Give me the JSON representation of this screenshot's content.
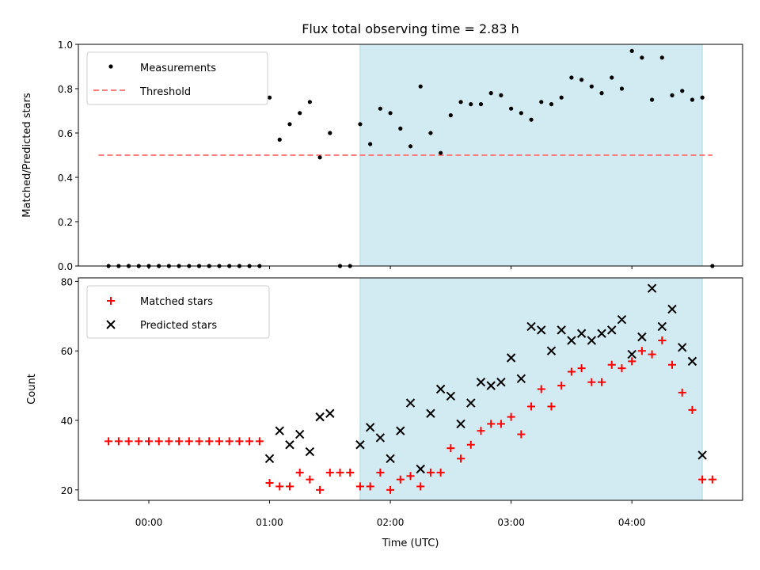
{
  "chart_data": [
    {
      "type": "scatter",
      "title": "Flux total observing time = 2.83 h",
      "ylabel": "Matched/Predicted stars",
      "xlabel": "",
      "xlim": [
        "-00:35",
        "04:55"
      ],
      "ylim": [
        0,
        1.0
      ],
      "yticks": [
        "0.0",
        "0.2",
        "0.4",
        "0.6",
        "0.8",
        "1.0"
      ],
      "shaded_span": [
        "01:45",
        "04:35"
      ],
      "shade_color": "#add8e6",
      "legend_position": "top-left",
      "threshold": {
        "name": "Threshold",
        "y": 0.5,
        "x_range": [
          "-00:25",
          "04:40"
        ],
        "color": "#ff7f7f",
        "style": "dashed"
      },
      "series": [
        {
          "name": "Measurements",
          "color": "#000000",
          "marker": "dot",
          "x": [
            "-00:20",
            "-00:15",
            "-00:10",
            "-00:05",
            "00:00",
            "00:05",
            "00:10",
            "00:15",
            "00:20",
            "00:25",
            "00:30",
            "00:35",
            "00:40",
            "00:45",
            "00:50",
            "00:55",
            "01:00",
            "01:05",
            "01:10",
            "01:15",
            "01:20",
            "01:25",
            "01:30",
            "01:35",
            "01:40",
            "01:45",
            "01:50",
            "01:55",
            "02:00",
            "02:05",
            "02:10",
            "02:15",
            "02:20",
            "02:25",
            "02:30",
            "02:35",
            "02:40",
            "02:45",
            "02:50",
            "02:55",
            "03:00",
            "03:05",
            "03:10",
            "03:15",
            "03:20",
            "03:25",
            "03:30",
            "03:35",
            "03:40",
            "03:45",
            "03:50",
            "03:55",
            "04:00",
            "04:05",
            "04:10",
            "04:15",
            "04:20",
            "04:25",
            "04:30",
            "04:35",
            "04:40"
          ],
          "y": [
            0,
            0,
            0,
            0,
            0,
            0,
            0,
            0,
            0,
            0,
            0,
            0,
            0,
            0,
            0,
            0,
            0.76,
            0.57,
            0.64,
            0.69,
            0.74,
            0.49,
            0.6,
            0,
            0,
            0.64,
            0.55,
            0.71,
            0.69,
            0.62,
            0.54,
            0.81,
            0.6,
            0.51,
            0.68,
            0.74,
            0.73,
            0.73,
            0.78,
            0.77,
            0.71,
            0.69,
            0.66,
            0.74,
            0.73,
            0.76,
            0.85,
            0.84,
            0.81,
            0.78,
            0.85,
            0.8,
            0.97,
            0.94,
            0.75,
            0.94,
            0.77,
            0.79,
            0.75,
            0.76,
            0
          ]
        }
      ]
    },
    {
      "type": "scatter",
      "title": "",
      "ylabel": "Count",
      "xlabel": "Time (UTC)",
      "xlim": [
        "-00:35",
        "04:55"
      ],
      "ylim": [
        17,
        81
      ],
      "xticks": [
        "00:00",
        "01:00",
        "02:00",
        "03:00",
        "04:00"
      ],
      "yticks": [
        "20",
        "40",
        "60",
        "80"
      ],
      "shaded_span": [
        "01:45",
        "04:35"
      ],
      "shade_color": "#add8e6",
      "legend_position": "top-left",
      "series": [
        {
          "name": "Matched stars",
          "color": "#ff0000",
          "marker": "plus",
          "x": [
            "-00:20",
            "-00:15",
            "-00:10",
            "-00:05",
            "00:00",
            "00:05",
            "00:10",
            "00:15",
            "00:20",
            "00:25",
            "00:30",
            "00:35",
            "00:40",
            "00:45",
            "00:50",
            "00:55",
            "01:00",
            "01:05",
            "01:10",
            "01:15",
            "01:20",
            "01:25",
            "01:30",
            "01:35",
            "01:40",
            "01:45",
            "01:50",
            "01:55",
            "02:00",
            "02:05",
            "02:10",
            "02:15",
            "02:20",
            "02:25",
            "02:30",
            "02:35",
            "02:40",
            "02:45",
            "02:50",
            "02:55",
            "03:00",
            "03:05",
            "03:10",
            "03:15",
            "03:20",
            "03:25",
            "03:30",
            "03:35",
            "03:40",
            "03:45",
            "03:50",
            "03:55",
            "04:00",
            "04:05",
            "04:10",
            "04:15",
            "04:20",
            "04:25",
            "04:30",
            "04:35",
            "04:40"
          ],
          "y": [
            34,
            34,
            34,
            34,
            34,
            34,
            34,
            34,
            34,
            34,
            34,
            34,
            34,
            34,
            34,
            34,
            22,
            21,
            21,
            25,
            23,
            20,
            25,
            25,
            25,
            21,
            21,
            25,
            20,
            23,
            24,
            21,
            25,
            25,
            32,
            29,
            33,
            37,
            39,
            39,
            41,
            36,
            44,
            49,
            44,
            50,
            54,
            55,
            51,
            51,
            56,
            55,
            57,
            60,
            59,
            63,
            56,
            48,
            43,
            23,
            23
          ]
        },
        {
          "name": "Predicted stars",
          "color": "#000000",
          "marker": "x",
          "x": [
            "01:00",
            "01:05",
            "01:10",
            "01:15",
            "01:20",
            "01:25",
            "01:30",
            "01:45",
            "01:50",
            "01:55",
            "02:00",
            "02:05",
            "02:10",
            "02:15",
            "02:20",
            "02:25",
            "02:30",
            "02:35",
            "02:40",
            "02:45",
            "02:50",
            "02:55",
            "03:00",
            "03:05",
            "03:10",
            "03:15",
            "03:20",
            "03:25",
            "03:30",
            "03:35",
            "03:40",
            "03:45",
            "03:50",
            "03:55",
            "04:00",
            "04:05",
            "04:10",
            "04:15",
            "04:20",
            "04:25",
            "04:30",
            "04:35"
          ],
          "y": [
            29,
            37,
            33,
            36,
            31,
            41,
            42,
            33,
            38,
            35,
            29,
            37,
            45,
            26,
            42,
            49,
            47,
            39,
            45,
            51,
            50,
            51,
            58,
            52,
            67,
            66,
            60,
            66,
            63,
            65,
            63,
            65,
            66,
            69,
            59,
            64,
            78,
            67,
            72,
            61,
            57,
            30
          ]
        }
      ]
    }
  ]
}
